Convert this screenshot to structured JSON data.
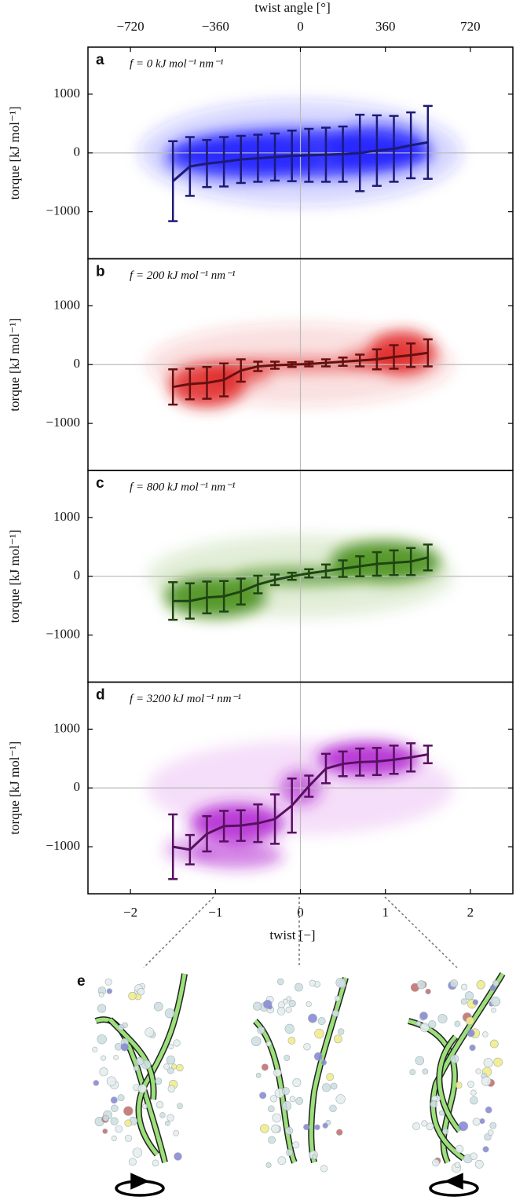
{
  "chart_data": [
    {
      "type": "line",
      "panel_label": "a",
      "annotation": "f = 0 kJ mol⁻¹ nm⁻¹",
      "ylabel": "torque [kJ mol⁻¹]",
      "x2label": "twist angle [°]",
      "x2lim": [
        -900,
        900
      ],
      "x2ticks": [
        {
          "value": -720,
          "label": "−720"
        },
        {
          "value": -360,
          "label": "−360"
        },
        0,
        360,
        720
      ],
      "xlim": [
        -2.5,
        2.5
      ],
      "ylim": [
        -1800,
        1800
      ],
      "yticks": [
        {
          "value": -1000,
          "label": "−1000"
        },
        0,
        1000
      ],
      "zero_lines": true,
      "cloud_color": "#2020ff",
      "color": "#1c1a78",
      "x": [
        -1.5,
        -1.3,
        -1.1,
        -0.9,
        -0.7,
        -0.5,
        -0.3,
        -0.1,
        0.1,
        0.3,
        0.5,
        0.7,
        0.9,
        1.1,
        1.3,
        1.5
      ],
      "values": [
        -480,
        -230,
        -180,
        -150,
        -110,
        -90,
        -70,
        -50,
        -40,
        -30,
        -20,
        0,
        40,
        70,
        130,
        180
      ],
      "errors": [
        680,
        500,
        400,
        420,
        400,
        400,
        400,
        430,
        450,
        460,
        470,
        650,
        600,
        560,
        560,
        620
      ]
    },
    {
      "type": "line",
      "panel_label": "b",
      "annotation": "f = 200 kJ mol⁻¹ nm⁻¹",
      "ylabel": "torque [kJ mol⁻¹]",
      "xlim": [
        -2.5,
        2.5
      ],
      "ylim": [
        -1800,
        1800
      ],
      "yticks": [
        {
          "value": -1000,
          "label": "−1000"
        },
        0,
        1000
      ],
      "zero_lines": true,
      "cloud_color": "#e02424",
      "color": "#661010",
      "x": [
        -1.5,
        -1.3,
        -1.1,
        -0.9,
        -0.7,
        -0.5,
        -0.3,
        -0.1,
        0.1,
        0.3,
        0.5,
        0.7,
        0.9,
        1.1,
        1.3,
        1.5
      ],
      "values": [
        -380,
        -330,
        -310,
        -260,
        -100,
        -30,
        -10,
        0,
        10,
        30,
        50,
        70,
        90,
        130,
        160,
        200
      ],
      "errors": [
        300,
        260,
        270,
        280,
        190,
        80,
        60,
        40,
        40,
        60,
        70,
        100,
        170,
        200,
        200,
        230
      ]
    },
    {
      "type": "line",
      "panel_label": "c",
      "annotation": "f = 800 kJ mol⁻¹ nm⁻¹",
      "ylabel": "torque [kJ mol⁻¹]",
      "xlim": [
        -2.5,
        2.5
      ],
      "ylim": [
        -1800,
        1800
      ],
      "yticks": [
        {
          "value": -1000,
          "label": "−1000"
        },
        0,
        1000
      ],
      "zero_lines": true,
      "cloud_color": "#3f8a12",
      "color": "#1f4512",
      "x": [
        -1.5,
        -1.3,
        -1.1,
        -0.9,
        -0.7,
        -0.5,
        -0.3,
        -0.1,
        0.1,
        0.3,
        0.5,
        0.7,
        0.9,
        1.1,
        1.3,
        1.5
      ],
      "values": [
        -420,
        -420,
        -360,
        -340,
        -260,
        -140,
        -60,
        0,
        50,
        90,
        130,
        170,
        210,
        230,
        250,
        320
      ],
      "errors": [
        320,
        300,
        270,
        260,
        220,
        150,
        90,
        60,
        70,
        110,
        140,
        170,
        200,
        210,
        230,
        220
      ]
    },
    {
      "type": "line",
      "panel_label": "d",
      "annotation": "f = 3200 kJ mol⁻¹ nm⁻¹",
      "ylabel": "torque [kJ mol⁻¹]",
      "xlabel": "twist  [−]",
      "xlim": [
        -2.5,
        2.5
      ],
      "xticks": [
        {
          "value": -2,
          "label": "−2"
        },
        {
          "value": -1,
          "label": "−1"
        },
        0,
        1,
        2
      ],
      "ylim": [
        -1800,
        1800
      ],
      "yticks": [
        {
          "value": -1000,
          "label": "−1000"
        },
        0,
        1000
      ],
      "zero_lines": true,
      "cloud_color": "#b020d0",
      "color": "#56105f",
      "x": [
        -1.5,
        -1.3,
        -1.1,
        -0.9,
        -0.7,
        -0.5,
        -0.3,
        -0.1,
        0.1,
        0.3,
        0.5,
        0.7,
        0.9,
        1.1,
        1.3,
        1.5
      ],
      "values": [
        -1000,
        -1050,
        -780,
        -650,
        -640,
        -600,
        -530,
        -300,
        30,
        330,
        410,
        440,
        450,
        480,
        520,
        570
      ],
      "errors": [
        550,
        250,
        300,
        260,
        260,
        320,
        420,
        460,
        180,
        250,
        210,
        230,
        230,
        240,
        240,
        150
      ]
    }
  ],
  "illustration": {
    "panel_label": "e"
  }
}
